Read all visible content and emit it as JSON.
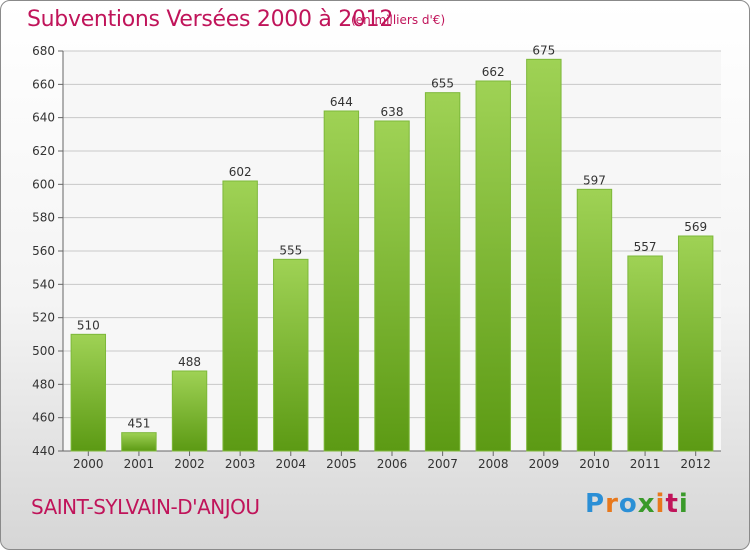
{
  "chart_data": {
    "type": "bar",
    "title": "Subventions Versées 2000 à 2012",
    "subtitle": "(en milliers d'€)",
    "categories": [
      "2000",
      "2001",
      "2002",
      "2003",
      "2004",
      "2005",
      "2006",
      "2007",
      "2008",
      "2009",
      "2010",
      "2011",
      "2012"
    ],
    "values": [
      510,
      451,
      488,
      602,
      555,
      644,
      638,
      655,
      662,
      675,
      597,
      557,
      569
    ],
    "ylim": [
      440,
      680
    ],
    "yticks": [
      440,
      460,
      480,
      500,
      520,
      540,
      560,
      580,
      600,
      620,
      640,
      660,
      680
    ],
    "grid": true,
    "xlabel": "",
    "ylabel": "",
    "colors": {
      "bar_top": "#9fd255",
      "bar_bottom": "#5c9a14",
      "title": "#c0145a"
    }
  },
  "footer": {
    "place": "SAINT-SYLVAIN-D'ANJOU",
    "logo_letters": [
      "P",
      "r",
      "o",
      "x",
      "i",
      "t",
      "i"
    ]
  }
}
